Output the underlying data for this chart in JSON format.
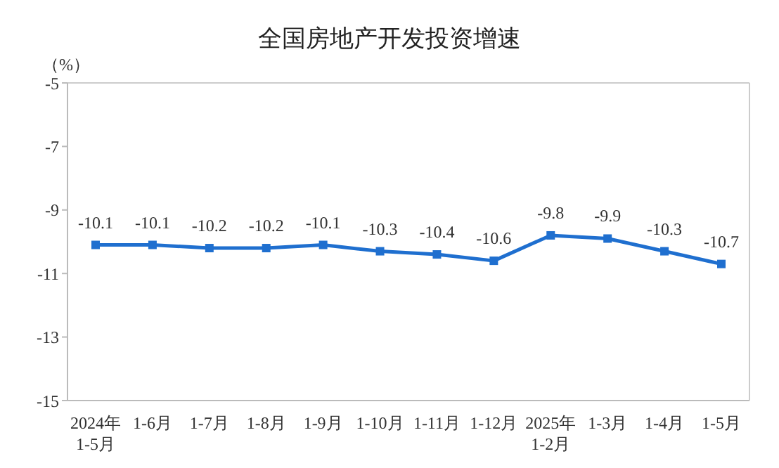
{
  "chart_data": {
    "type": "line",
    "title": "全国房地产开发投资增速",
    "ylabel": "（%）",
    "categories": [
      "2024年\n1-5月",
      "1-6月",
      "1-7月",
      "1-8月",
      "1-9月",
      "1-10月",
      "1-11月",
      "1-12月",
      "2025年\n1-2月",
      "1-3月",
      "1-4月",
      "1-5月"
    ],
    "series": [
      {
        "color": "#1f6fcf",
        "values": [
          -10.1,
          -10.1,
          -10.2,
          -10.2,
          -10.1,
          -10.3,
          -10.4,
          -10.6,
          -9.8,
          -9.9,
          -10.3,
          -10.7
        ]
      }
    ],
    "ylim": [
      -15,
      -5
    ],
    "yticks": [
      -5,
      -7,
      -9,
      -11,
      -13,
      -15
    ],
    "grid": false,
    "legend": false,
    "marker": "square",
    "line_style": "solid",
    "data_labels": true
  }
}
